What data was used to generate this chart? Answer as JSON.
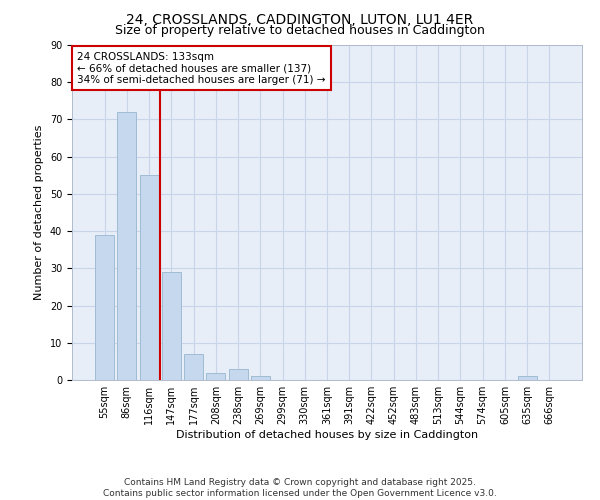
{
  "title1": "24, CROSSLANDS, CADDINGTON, LUTON, LU1 4ER",
  "title2": "Size of property relative to detached houses in Caddington",
  "xlabel": "Distribution of detached houses by size in Caddington",
  "ylabel": "Number of detached properties",
  "categories": [
    "55sqm",
    "86sqm",
    "116sqm",
    "147sqm",
    "177sqm",
    "208sqm",
    "238sqm",
    "269sqm",
    "299sqm",
    "330sqm",
    "361sqm",
    "391sqm",
    "422sqm",
    "452sqm",
    "483sqm",
    "513sqm",
    "544sqm",
    "574sqm",
    "605sqm",
    "635sqm",
    "666sqm"
  ],
  "values": [
    39,
    72,
    55,
    29,
    7,
    2,
    3,
    1,
    0,
    0,
    0,
    0,
    0,
    0,
    0,
    0,
    0,
    0,
    0,
    1,
    0
  ],
  "bar_color": "#c5d8ed",
  "bar_edge_color": "#a0bcd4",
  "vline_color": "#cc0000",
  "annotation_text": "24 CROSSLANDS: 133sqm\n← 66% of detached houses are smaller (137)\n34% of semi-detached houses are larger (71) →",
  "annotation_box_color": "white",
  "annotation_box_edge_color": "#cc0000",
  "ylim": [
    0,
    90
  ],
  "yticks": [
    0,
    10,
    20,
    30,
    40,
    50,
    60,
    70,
    80,
    90
  ],
  "grid_color": "#c8d4e8",
  "background_color": "#e8eef8",
  "footer": "Contains HM Land Registry data © Crown copyright and database right 2025.\nContains public sector information licensed under the Open Government Licence v3.0.",
  "title1_fontsize": 10,
  "title2_fontsize": 9,
  "ylabel_fontsize": 8,
  "xlabel_fontsize": 8,
  "tick_fontsize": 7,
  "annotation_fontsize": 7.5,
  "footer_fontsize": 6.5
}
